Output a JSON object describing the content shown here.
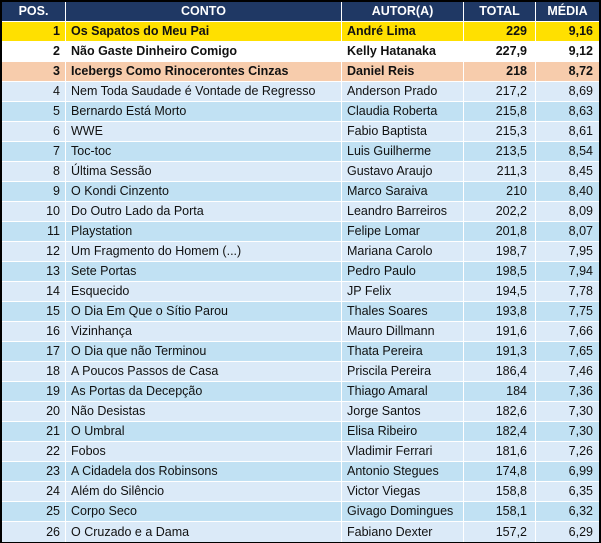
{
  "table": {
    "headers": {
      "pos": "POS.",
      "conto": "CONTO",
      "autor": "AUTOR(A)",
      "total": "TOTAL",
      "media": "MÉDIA"
    },
    "rows": [
      {
        "pos": "1",
        "conto": "Os Sapatos do Meu Pai",
        "autor": "André Lima",
        "total": "229",
        "media": "9,16",
        "style": "gold"
      },
      {
        "pos": "2",
        "conto": "Não Gaste Dinheiro Comigo",
        "autor": "Kelly Hatanaka",
        "total": "227,9",
        "media": "9,12",
        "style": "white"
      },
      {
        "pos": "3",
        "conto": "Icebergs Como Rinocerontes Cinzas",
        "autor": "Daniel Reis",
        "total": "218",
        "media": "8,72",
        "style": "peach"
      },
      {
        "pos": "4",
        "conto": "Nem Toda Saudade é Vontade de Regresso",
        "autor": "Anderson Prado",
        "total": "217,2",
        "media": "8,69",
        "style": "blue-light"
      },
      {
        "pos": "5",
        "conto": "Bernardo Está Morto",
        "autor": "Claudia Roberta",
        "total": "215,8",
        "media": "8,63",
        "style": "blue-dark"
      },
      {
        "pos": "6",
        "conto": "WWE",
        "autor": "Fabio Baptista",
        "total": "215,3",
        "media": "8,61",
        "style": "blue-light"
      },
      {
        "pos": "7",
        "conto": "Toc-toc",
        "autor": "Luis Guilherme",
        "total": "213,5",
        "media": "8,54",
        "style": "blue-dark"
      },
      {
        "pos": "8",
        "conto": "Última Sessão",
        "autor": "Gustavo Araujo",
        "total": "211,3",
        "media": "8,45",
        "style": "blue-light"
      },
      {
        "pos": "9",
        "conto": "O Kondi Cinzento",
        "autor": "Marco Saraiva",
        "total": "210",
        "media": "8,40",
        "style": "blue-dark"
      },
      {
        "pos": "10",
        "conto": "Do Outro Lado da Porta",
        "autor": "Leandro Barreiros",
        "total": "202,2",
        "media": "8,09",
        "style": "blue-light"
      },
      {
        "pos": "11",
        "conto": "Playstation",
        "autor": "Felipe Lomar",
        "total": "201,8",
        "media": "8,07",
        "style": "blue-dark"
      },
      {
        "pos": "12",
        "conto": "Um Fragmento do Homem (...)",
        "autor": "Mariana Carolo",
        "total": "198,7",
        "media": "7,95",
        "style": "blue-light"
      },
      {
        "pos": "13",
        "conto": "Sete Portas",
        "autor": "Pedro Paulo",
        "total": "198,5",
        "media": "7,94",
        "style": "blue-dark"
      },
      {
        "pos": "14",
        "conto": "Esquecido",
        "autor": "JP Felix",
        "total": "194,5",
        "media": "7,78",
        "style": "blue-light"
      },
      {
        "pos": "15",
        "conto": "O Dia Em Que o Sítio Parou",
        "autor": "Thales Soares",
        "total": "193,8",
        "media": "7,75",
        "style": "blue-dark"
      },
      {
        "pos": "16",
        "conto": "Vizinhança",
        "autor": "Mauro Dillmann",
        "total": "191,6",
        "media": "7,66",
        "style": "blue-light"
      },
      {
        "pos": "17",
        "conto": "O Dia que não Terminou",
        "autor": "Thata Pereira",
        "total": "191,3",
        "media": "7,65",
        "style": "blue-dark"
      },
      {
        "pos": "18",
        "conto": "A Poucos Passos de Casa",
        "autor": "Priscila Pereira",
        "total": "186,4",
        "media": "7,46",
        "style": "blue-light"
      },
      {
        "pos": "19",
        "conto": "As Portas da Decepção",
        "autor": "Thiago Amaral",
        "total": "184",
        "media": "7,36",
        "style": "blue-dark"
      },
      {
        "pos": "20",
        "conto": "Não Desistas",
        "autor": "Jorge Santos",
        "total": "182,6",
        "media": "7,30",
        "style": "blue-light"
      },
      {
        "pos": "21",
        "conto": "O Umbral",
        "autor": "Elisa Ribeiro",
        "total": "182,4",
        "media": "7,30",
        "style": "blue-dark"
      },
      {
        "pos": "22",
        "conto": "Fobos",
        "autor": "Vladimir Ferrari",
        "total": "181,6",
        "media": "7,26",
        "style": "blue-light"
      },
      {
        "pos": "23",
        "conto": "A Cidadela dos Robinsons",
        "autor": "Antonio Stegues",
        "total": "174,8",
        "media": "6,99",
        "style": "blue-dark"
      },
      {
        "pos": "24",
        "conto": "Além do Silêncio",
        "autor": "Victor Viegas",
        "total": "158,8",
        "media": "6,35",
        "style": "blue-light"
      },
      {
        "pos": "25",
        "conto": "Corpo Seco",
        "autor": "Givago Domingues",
        "total": "158,1",
        "media": "6,32",
        "style": "blue-dark"
      },
      {
        "pos": "26",
        "conto": "O Cruzado e a Dama",
        "autor": "Fabiano Dexter",
        "total": "157,2",
        "media": "6,29",
        "style": "blue-light"
      }
    ]
  },
  "colors": {
    "border": "#000000",
    "header_bg": "#1F3864",
    "header_text": "#FFFFFF",
    "row_text": "#111111",
    "gold": "#FFE000",
    "white": "#FFFFFF",
    "peach": "#F7CCAC",
    "blue_light": "#DBEAF8",
    "blue_dark": "#C1E1F3"
  }
}
